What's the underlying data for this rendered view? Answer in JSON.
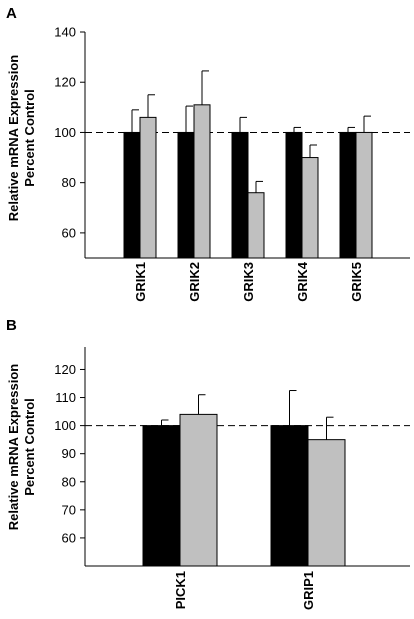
{
  "chart_data": [
    {
      "panel": "A",
      "type": "bar",
      "ylabel_line1": "Relative mRNA Expression",
      "ylabel_line2": "Percent Control",
      "xlabel": "",
      "ylim": [
        50,
        140
      ],
      "ytick_start": 60,
      "ytick_step": 20,
      "yticks": [
        "60",
        "80",
        "100",
        "120",
        "140"
      ],
      "reference_line": 100,
      "categories": [
        "GRIK1",
        "GRIK2",
        "GRIK3",
        "GRIK4",
        "GRIK5"
      ],
      "series": [
        {
          "fill": "#000000",
          "values": [
            100,
            100,
            100,
            100,
            100
          ],
          "error": [
            9,
            10.5,
            6,
            2,
            2
          ]
        },
        {
          "fill": "#c0c0c0",
          "values": [
            106,
            111,
            76,
            90,
            100
          ],
          "error": [
            9,
            13.5,
            4.5,
            5,
            6.5
          ]
        }
      ]
    },
    {
      "panel": "B",
      "type": "bar",
      "ylabel_line1": "Relative mRNA Expression",
      "ylabel_line2": "Percent Control",
      "xlabel": "",
      "ylim": [
        50,
        128
      ],
      "ytick_start": 60,
      "ytick_step": 10,
      "yticks": [
        "60",
        "70",
        "80",
        "90",
        "100",
        "110",
        "120"
      ],
      "reference_line": 100,
      "categories": [
        "PICK1",
        "GRIP1"
      ],
      "series": [
        {
          "fill": "#000000",
          "values": [
            100,
            100
          ],
          "error": [
            2,
            12.5
          ]
        },
        {
          "fill": "#c0c0c0",
          "values": [
            104,
            95
          ],
          "error": [
            7,
            8
          ]
        }
      ]
    }
  ]
}
